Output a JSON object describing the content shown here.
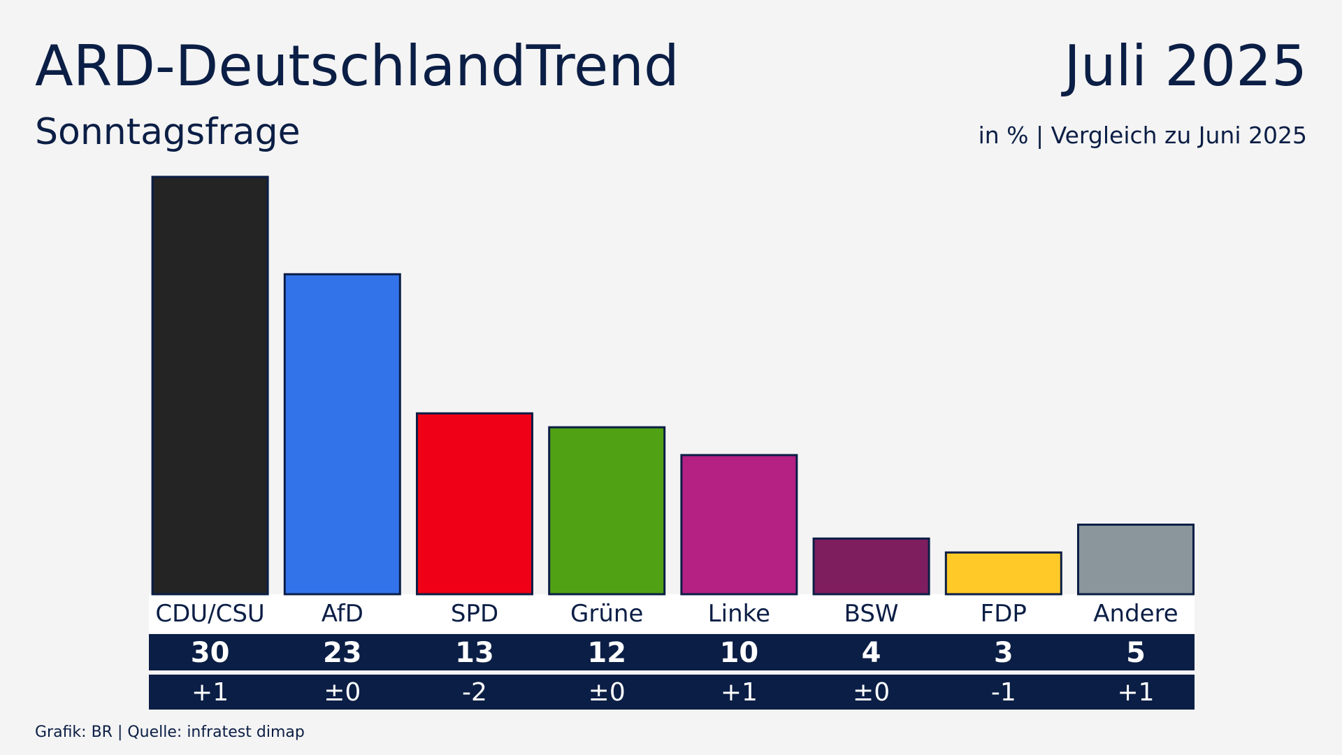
{
  "chart_data": {
    "type": "bar",
    "title": "ARD-DeutschlandTrend",
    "date": "Juli 2025",
    "subtitle": "Sonntagsfrage",
    "note": "in % | Vergleich zu Juni 2025",
    "source": "Grafik: BR | Quelle: infratest dimap",
    "categories": [
      "CDU/CSU",
      "AfD",
      "SPD",
      "Grüne",
      "Linke",
      "BSW",
      "FDP",
      "Andere"
    ],
    "values": [
      30,
      23,
      13,
      12,
      10,
      4,
      3,
      5
    ],
    "changes": [
      "+1",
      "±0",
      "-2",
      "±0",
      "+1",
      "±0",
      "-1",
      "+1"
    ],
    "colors": [
      "#242424",
      "#3373ea",
      "#f00017",
      "#50a214",
      "#b52083",
      "#7e1e5f",
      "#ffc927",
      "#8a959c"
    ]
  }
}
